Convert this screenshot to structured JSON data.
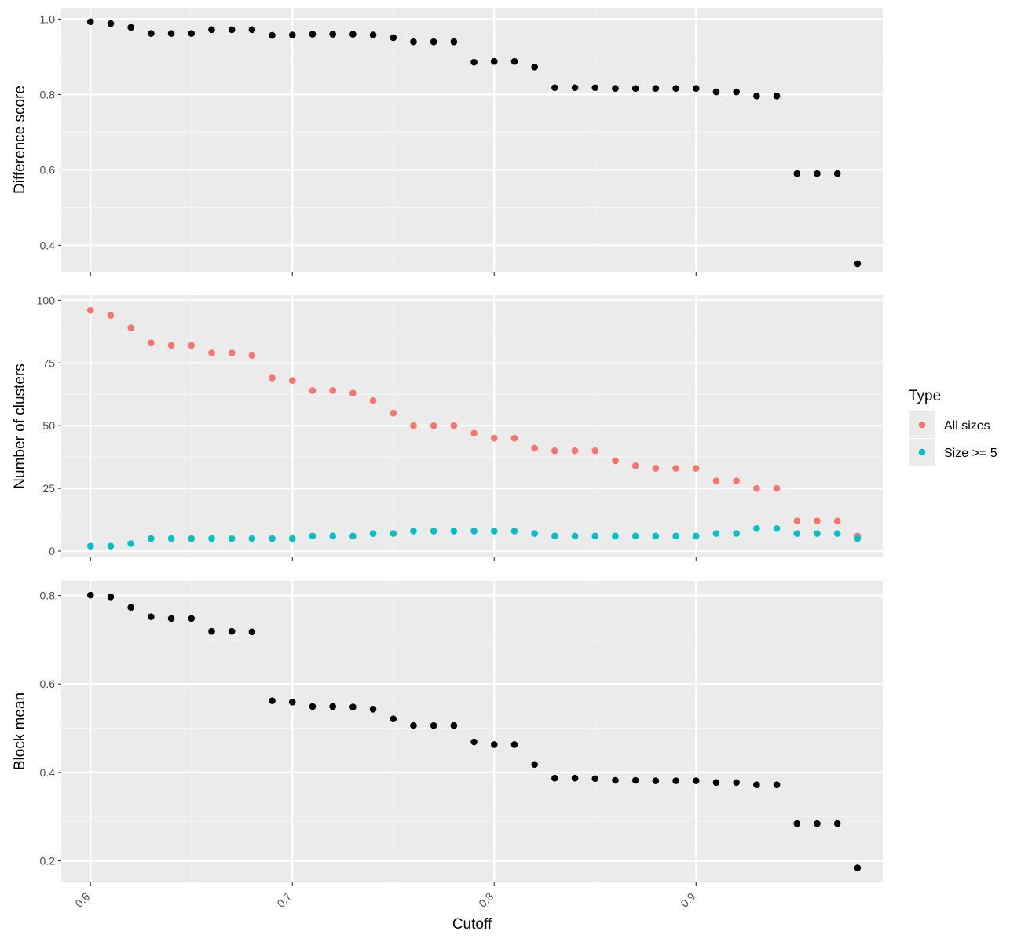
{
  "colors": {
    "panel_bg": "#ebebeb",
    "grid_major": "#ffffff",
    "grid_minor": "#f4f4f4",
    "point_black": "#000000",
    "all_sizes": "#f8766d",
    "size_ge_5": "#00bfc4",
    "tick_text": "#4d4d4d",
    "axis_tick": "#333333"
  },
  "chart_data": [
    {
      "type": "scatter",
      "ylabel": "Difference score",
      "xlim": [
        0.5855,
        0.9925
      ],
      "ylim": [
        0.33,
        1.03
      ],
      "y_ticks": [
        0.4,
        0.6,
        0.8,
        1.0
      ],
      "y_tick_labels": [
        "0.4",
        "0.6",
        "0.8",
        "1.0"
      ],
      "grid": true,
      "series": [
        {
          "color": "#000000",
          "x": [
            0.6,
            0.61,
            0.62,
            0.63,
            0.64,
            0.65,
            0.66,
            0.67,
            0.68,
            0.69,
            0.7,
            0.71,
            0.72,
            0.73,
            0.74,
            0.75,
            0.76,
            0.77,
            0.78,
            0.79,
            0.8,
            0.81,
            0.82,
            0.83,
            0.84,
            0.85,
            0.86,
            0.87,
            0.88,
            0.89,
            0.9,
            0.91,
            0.92,
            0.93,
            0.94,
            0.95,
            0.96,
            0.97,
            0.98
          ],
          "y": [
            0.993,
            0.988,
            0.978,
            0.962,
            0.962,
            0.962,
            0.972,
            0.972,
            0.972,
            0.957,
            0.958,
            0.96,
            0.96,
            0.96,
            0.958,
            0.951,
            0.94,
            0.94,
            0.94,
            0.886,
            0.888,
            0.888,
            0.873,
            0.818,
            0.818,
            0.818,
            0.816,
            0.816,
            0.816,
            0.816,
            0.816,
            0.807,
            0.807,
            0.796,
            0.796,
            0.59,
            0.59,
            0.59,
            0.351
          ]
        }
      ]
    },
    {
      "type": "scatter",
      "ylabel": "Number of clusters",
      "xlim": [
        0.5855,
        0.9925
      ],
      "ylim": [
        -2.5,
        102
      ],
      "y_ticks": [
        0,
        25,
        50,
        75,
        100
      ],
      "y_tick_labels": [
        "0",
        "25",
        "50",
        "75",
        "100"
      ],
      "grid": true,
      "legend": {
        "title": "Type",
        "position": "right",
        "entries": [
          {
            "label": "All sizes",
            "color": "#f8766d"
          },
          {
            "label": "Size >= 5",
            "color": "#00bfc4"
          }
        ]
      },
      "series": [
        {
          "name": "All sizes",
          "color": "#f8766d",
          "x": [
            0.6,
            0.61,
            0.62,
            0.63,
            0.64,
            0.65,
            0.66,
            0.67,
            0.68,
            0.69,
            0.7,
            0.71,
            0.72,
            0.73,
            0.74,
            0.75,
            0.76,
            0.77,
            0.78,
            0.79,
            0.8,
            0.81,
            0.82,
            0.83,
            0.84,
            0.85,
            0.86,
            0.87,
            0.88,
            0.89,
            0.9,
            0.91,
            0.92,
            0.93,
            0.94,
            0.95,
            0.96,
            0.97,
            0.98
          ],
          "y": [
            96,
            94,
            89,
            83,
            82,
            82,
            79,
            79,
            78,
            69,
            68,
            64,
            64,
            63,
            60,
            55,
            50,
            50,
            50,
            47,
            45,
            45,
            41,
            40,
            40,
            40,
            36,
            34,
            33,
            33,
            33,
            28,
            28,
            25,
            25,
            12,
            12,
            12,
            6
          ]
        },
        {
          "name": "Size >= 5",
          "color": "#00bfc4",
          "x": [
            0.6,
            0.61,
            0.62,
            0.63,
            0.64,
            0.65,
            0.66,
            0.67,
            0.68,
            0.69,
            0.7,
            0.71,
            0.72,
            0.73,
            0.74,
            0.75,
            0.76,
            0.77,
            0.78,
            0.79,
            0.8,
            0.81,
            0.82,
            0.83,
            0.84,
            0.85,
            0.86,
            0.87,
            0.88,
            0.89,
            0.9,
            0.91,
            0.92,
            0.93,
            0.94,
            0.95,
            0.96,
            0.97,
            0.98
          ],
          "y": [
            2,
            2,
            3,
            5,
            5,
            5,
            5,
            5,
            5,
            5,
            5,
            6,
            6,
            6,
            7,
            7,
            8,
            8,
            8,
            8,
            8,
            8,
            7,
            6,
            6,
            6,
            6,
            6,
            6,
            6,
            6,
            7,
            7,
            9,
            9,
            7,
            7,
            7,
            5
          ]
        }
      ]
    },
    {
      "type": "scatter",
      "ylabel": "Block mean",
      "xlabel": "Cutoff",
      "xlim": [
        0.5855,
        0.9925
      ],
      "ylim": [
        0.153,
        0.833
      ],
      "y_ticks": [
        0.2,
        0.4,
        0.6,
        0.8
      ],
      "y_tick_labels": [
        "0.2",
        "0.4",
        "0.6",
        "0.8"
      ],
      "x_ticks": [
        0.6,
        0.7,
        0.8,
        0.9
      ],
      "x_tick_labels": [
        "0.6",
        "0.7",
        "0.8",
        "0.9"
      ],
      "grid": true,
      "series": [
        {
          "color": "#000000",
          "x": [
            0.6,
            0.61,
            0.62,
            0.63,
            0.64,
            0.65,
            0.66,
            0.67,
            0.68,
            0.69,
            0.7,
            0.71,
            0.72,
            0.73,
            0.74,
            0.75,
            0.76,
            0.77,
            0.78,
            0.79,
            0.8,
            0.81,
            0.82,
            0.83,
            0.84,
            0.85,
            0.86,
            0.87,
            0.88,
            0.89,
            0.9,
            0.91,
            0.92,
            0.93,
            0.94,
            0.95,
            0.96,
            0.97,
            0.98
          ],
          "y": [
            0.801,
            0.797,
            0.773,
            0.752,
            0.748,
            0.748,
            0.719,
            0.719,
            0.718,
            0.562,
            0.559,
            0.549,
            0.549,
            0.548,
            0.543,
            0.521,
            0.506,
            0.506,
            0.506,
            0.469,
            0.463,
            0.463,
            0.418,
            0.387,
            0.387,
            0.386,
            0.382,
            0.382,
            0.381,
            0.381,
            0.381,
            0.377,
            0.377,
            0.372,
            0.372,
            0.284,
            0.284,
            0.284,
            0.184
          ]
        }
      ]
    }
  ]
}
